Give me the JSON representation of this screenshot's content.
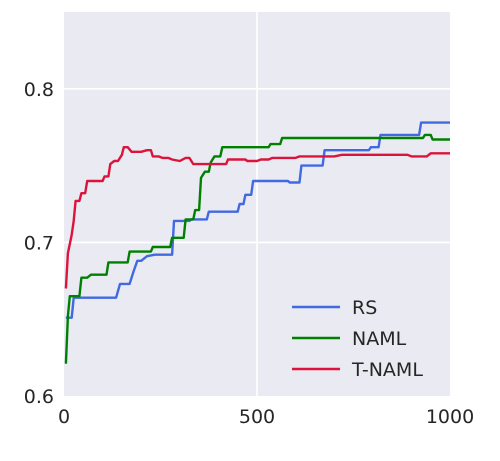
{
  "chart_data": {
    "type": "line",
    "title": "",
    "xlabel": "",
    "ylabel": "",
    "xlim": [
      0,
      1000
    ],
    "ylim": [
      0.6,
      0.85
    ],
    "x_ticks": [
      0,
      500,
      1000
    ],
    "x_tick_labels": [
      "0",
      "500",
      "1000"
    ],
    "y_ticks": [
      0.6,
      0.7,
      0.8
    ],
    "y_tick_labels": [
      "0.6",
      "0.7",
      "0.8"
    ],
    "grid": true,
    "legend": "lower-right",
    "series": [
      {
        "name": "RS",
        "color": "#4169e1",
        "points": [
          [
            5,
            0.651
          ],
          [
            20,
            0.651
          ],
          [
            25,
            0.664
          ],
          [
            135,
            0.664
          ],
          [
            145,
            0.673
          ],
          [
            170,
            0.673
          ],
          [
            180,
            0.681
          ],
          [
            190,
            0.688
          ],
          [
            200,
            0.688
          ],
          [
            215,
            0.691
          ],
          [
            235,
            0.692
          ],
          [
            280,
            0.692
          ],
          [
            285,
            0.714
          ],
          [
            325,
            0.714
          ],
          [
            330,
            0.715
          ],
          [
            370,
            0.715
          ],
          [
            375,
            0.72
          ],
          [
            450,
            0.72
          ],
          [
            455,
            0.725
          ],
          [
            465,
            0.725
          ],
          [
            470,
            0.731
          ],
          [
            485,
            0.731
          ],
          [
            490,
            0.74
          ],
          [
            580,
            0.74
          ],
          [
            585,
            0.739
          ],
          [
            610,
            0.739
          ],
          [
            615,
            0.75
          ],
          [
            670,
            0.75
          ],
          [
            675,
            0.76
          ],
          [
            790,
            0.76
          ],
          [
            795,
            0.762
          ],
          [
            815,
            0.762
          ],
          [
            820,
            0.77
          ],
          [
            920,
            0.77
          ],
          [
            925,
            0.778
          ],
          [
            1000,
            0.778
          ]
        ]
      },
      {
        "name": "NAML",
        "color": "#008000",
        "points": [
          [
            5,
            0.621
          ],
          [
            10,
            0.652
          ],
          [
            15,
            0.665
          ],
          [
            40,
            0.665
          ],
          [
            45,
            0.677
          ],
          [
            60,
            0.677
          ],
          [
            70,
            0.679
          ],
          [
            110,
            0.679
          ],
          [
            115,
            0.687
          ],
          [
            165,
            0.687
          ],
          [
            170,
            0.694
          ],
          [
            225,
            0.694
          ],
          [
            230,
            0.697
          ],
          [
            275,
            0.697
          ],
          [
            280,
            0.703
          ],
          [
            310,
            0.703
          ],
          [
            315,
            0.715
          ],
          [
            335,
            0.715
          ],
          [
            340,
            0.721
          ],
          [
            350,
            0.721
          ],
          [
            355,
            0.742
          ],
          [
            365,
            0.746
          ],
          [
            375,
            0.746
          ],
          [
            380,
            0.752
          ],
          [
            390,
            0.756
          ],
          [
            405,
            0.756
          ],
          [
            410,
            0.762
          ],
          [
            530,
            0.762
          ],
          [
            535,
            0.764
          ],
          [
            560,
            0.764
          ],
          [
            565,
            0.768
          ],
          [
            930,
            0.768
          ],
          [
            935,
            0.77
          ],
          [
            950,
            0.77
          ],
          [
            955,
            0.767
          ],
          [
            1000,
            0.767
          ]
        ]
      },
      {
        "name": "T-NAML",
        "color": "#dc143c",
        "points": [
          [
            5,
            0.67
          ],
          [
            10,
            0.693
          ],
          [
            20,
            0.705
          ],
          [
            25,
            0.714
          ],
          [
            30,
            0.727
          ],
          [
            40,
            0.727
          ],
          [
            45,
            0.732
          ],
          [
            55,
            0.732
          ],
          [
            60,
            0.74
          ],
          [
            100,
            0.74
          ],
          [
            105,
            0.743
          ],
          [
            115,
            0.743
          ],
          [
            120,
            0.751
          ],
          [
            130,
            0.753
          ],
          [
            140,
            0.753
          ],
          [
            150,
            0.757
          ],
          [
            155,
            0.762
          ],
          [
            165,
            0.762
          ],
          [
            175,
            0.759
          ],
          [
            200,
            0.759
          ],
          [
            215,
            0.76
          ],
          [
            225,
            0.76
          ],
          [
            230,
            0.756
          ],
          [
            245,
            0.756
          ],
          [
            255,
            0.755
          ],
          [
            270,
            0.755
          ],
          [
            280,
            0.754
          ],
          [
            300,
            0.753
          ],
          [
            315,
            0.755
          ],
          [
            325,
            0.755
          ],
          [
            335,
            0.751
          ],
          [
            420,
            0.751
          ],
          [
            425,
            0.754
          ],
          [
            470,
            0.754
          ],
          [
            475,
            0.753
          ],
          [
            500,
            0.753
          ],
          [
            510,
            0.754
          ],
          [
            530,
            0.754
          ],
          [
            540,
            0.755
          ],
          [
            600,
            0.755
          ],
          [
            610,
            0.756
          ],
          [
            700,
            0.756
          ],
          [
            720,
            0.757
          ],
          [
            890,
            0.757
          ],
          [
            900,
            0.756
          ],
          [
            940,
            0.756
          ],
          [
            950,
            0.758
          ],
          [
            1000,
            0.758
          ]
        ]
      }
    ]
  }
}
